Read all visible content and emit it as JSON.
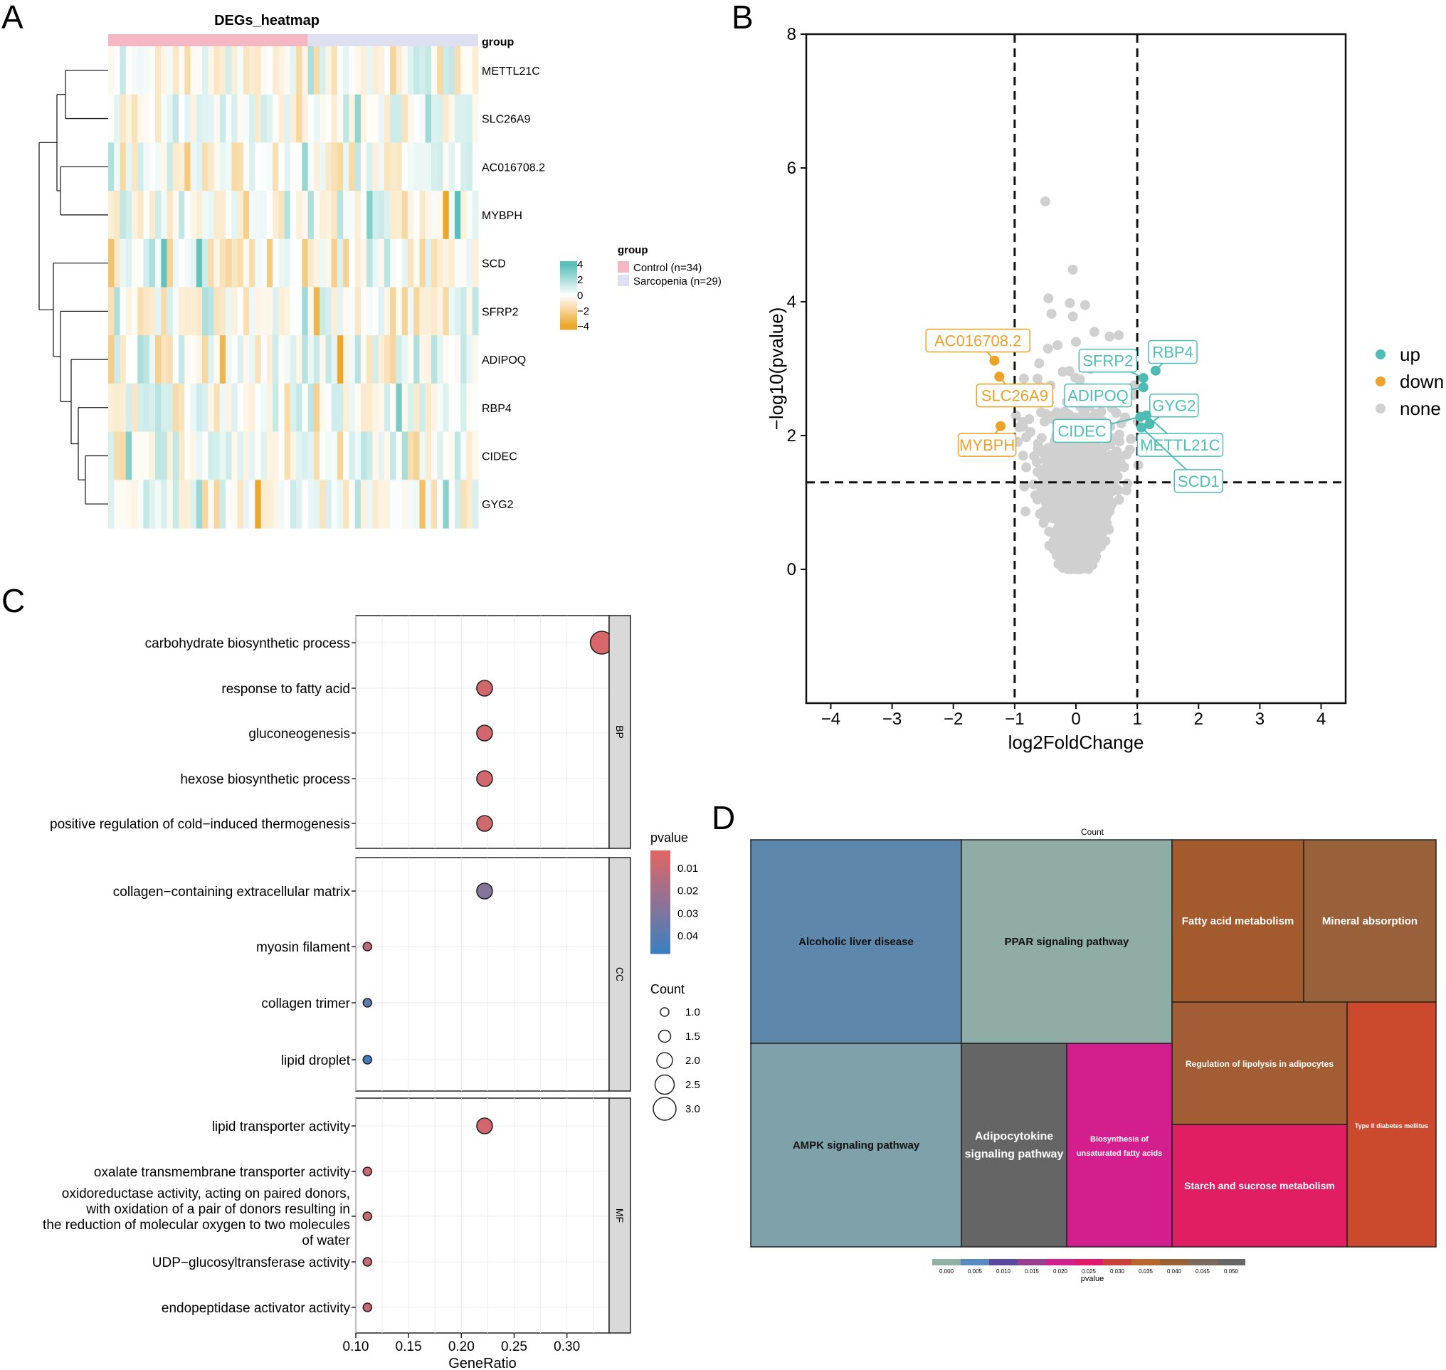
{
  "panel_letters": {
    "a": "A",
    "b": "B",
    "c": "C",
    "d": "D"
  },
  "colors": {
    "up": "#4dbdb4",
    "down": "#eca127",
    "none": "#d0d0d0",
    "control": "#f6b7c5",
    "sarcopenia": "#dedff0",
    "heat_high": "#5cc0b9",
    "heat_mid": "#ffffff",
    "heat_low": "#eca72b",
    "pvalue_low": "#e06666",
    "pvalue_high": "#3d7fc1"
  },
  "chart_data": [
    {
      "id": "A",
      "type": "heatmap",
      "title": "DEGs_heatmap",
      "annotation_label": "group",
      "genes": [
        "METTL21C",
        "SLC26A9",
        "AC016708.2",
        "MYBPH",
        "SCD",
        "SFRP2",
        "ADIPOQ",
        "RBP4",
        "CIDEC",
        "GYG2"
      ],
      "groups": [
        {
          "name": "Control (n=34)",
          "n": 34
        },
        {
          "name": "Sarcopenia (n=29)",
          "n": 29
        }
      ],
      "legend_title": "group",
      "colorbar_ticks": [
        4,
        2,
        0,
        -2,
        -4
      ],
      "colorbar_labels": [
        "4",
        "2",
        "0",
        "−2",
        "−4"
      ],
      "value_range": [
        -4,
        4
      ]
    },
    {
      "id": "B",
      "type": "scatter",
      "xlabel": "log2FoldChange",
      "ylabel": "−log10(pvalue)",
      "xlim": [
        -4.4,
        4.4
      ],
      "ylim": [
        -2.0,
        8.0
      ],
      "xticks": [
        -4,
        -3,
        -2,
        -1,
        0,
        1,
        2,
        3,
        4
      ],
      "xtick_labels": [
        "−4",
        "−3",
        "−2",
        "−1",
        "0",
        "1",
        "2",
        "3",
        "4"
      ],
      "yticks": [
        0,
        2,
        4,
        6,
        8
      ],
      "ytick_labels": [
        "0",
        "2",
        "4",
        "6",
        "8"
      ],
      "vlines": [
        -1,
        1
      ],
      "hline": 1.3,
      "legend": [
        "up",
        "down",
        "none"
      ],
      "labeled_points": [
        {
          "gene": "AC016708.2",
          "x": -1.33,
          "y": 3.12,
          "group": "down",
          "lx": -1.6,
          "ly": 3.42
        },
        {
          "gene": "SLC26A9",
          "x": -1.25,
          "y": 2.88,
          "group": "down",
          "lx": -1.0,
          "ly": 2.6
        },
        {
          "gene": "MYBPH",
          "x": -1.23,
          "y": 2.14,
          "group": "down",
          "lx": -1.45,
          "ly": 1.86
        },
        {
          "gene": "SFRP2",
          "x": 1.1,
          "y": 2.86,
          "group": "up",
          "lx": 0.52,
          "ly": 3.12
        },
        {
          "gene": "RBP4",
          "x": 1.3,
          "y": 2.97,
          "group": "up",
          "lx": 1.58,
          "ly": 3.25
        },
        {
          "gene": "ADIPOQ",
          "x": 1.1,
          "y": 2.72,
          "group": "up",
          "lx": 0.36,
          "ly": 2.6
        },
        {
          "gene": "GYG2",
          "x": 1.2,
          "y": 2.17,
          "group": "up",
          "lx": 1.6,
          "ly": 2.45
        },
        {
          "gene": "CIDEC",
          "x": 1.05,
          "y": 2.28,
          "group": "up",
          "lx": 0.1,
          "ly": 2.07
        },
        {
          "gene": "METTL21C",
          "x": 1.15,
          "y": 2.3,
          "group": "up",
          "lx": 1.7,
          "ly": 1.86
        },
        {
          "gene": "SCD1",
          "x": 1.07,
          "y": 2.12,
          "group": "up",
          "lx": 2.0,
          "ly": 1.32
        }
      ],
      "outlier_points": [
        {
          "x": -0.5,
          "y": 5.5
        },
        {
          "x": -0.05,
          "y": 4.48
        },
        {
          "x": -0.45,
          "y": 4.05
        },
        {
          "x": -0.1,
          "y": 3.98
        },
        {
          "x": -0.4,
          "y": 3.82
        },
        {
          "x": -0.05,
          "y": 3.78
        },
        {
          "x": 0.15,
          "y": 3.95
        },
        {
          "x": 0.3,
          "y": 3.55
        },
        {
          "x": 0.55,
          "y": 3.48
        },
        {
          "x": 0.7,
          "y": 3.5
        },
        {
          "x": 0.0,
          "y": 3.4
        },
        {
          "x": -0.3,
          "y": 3.35
        },
        {
          "x": -0.85,
          "y": 2.85
        },
        {
          "x": -0.7,
          "y": 2.6
        }
      ]
    },
    {
      "id": "C",
      "type": "scatter",
      "xlabel": "GeneRatio",
      "xlim": [
        0.1,
        0.34
      ],
      "xticks": [
        0.1,
        0.15,
        0.2,
        0.25,
        0.3
      ],
      "xtick_labels": [
        "0.10",
        "0.15",
        "0.20",
        "0.25",
        "0.30"
      ],
      "pvalue_title": "pvalue",
      "pvalue_range": [
        0.002,
        0.048
      ],
      "pvalue_ticks": [
        0.01,
        0.02,
        0.03,
        0.04
      ],
      "pvalue_tick_labels": [
        "0.01",
        "0.02",
        "0.03",
        "0.04"
      ],
      "count_title": "Count",
      "count_legend": [
        1.0,
        1.5,
        2.0,
        2.5,
        3.0
      ],
      "count_legend_labels": [
        "1.0",
        "1.5",
        "2.0",
        "2.5",
        "3.0"
      ],
      "facets": [
        {
          "name": "BP",
          "terms": [
            {
              "lines": [
                "carbohydrate biosynthetic process"
              ],
              "ratio": 0.333,
              "count": 3,
              "pvalue": 0.004
            },
            {
              "lines": [
                "response to fatty acid"
              ],
              "ratio": 0.222,
              "count": 2,
              "pvalue": 0.006
            },
            {
              "lines": [
                "gluconeogenesis"
              ],
              "ratio": 0.222,
              "count": 2,
              "pvalue": 0.006
            },
            {
              "lines": [
                "hexose biosynthetic process"
              ],
              "ratio": 0.222,
              "count": 2,
              "pvalue": 0.006
            },
            {
              "lines": [
                "positive regulation of cold−induced thermogenesis"
              ],
              "ratio": 0.222,
              "count": 2,
              "pvalue": 0.007
            }
          ]
        },
        {
          "name": "CC",
          "terms": [
            {
              "lines": [
                "collagen−containing extracellular matrix"
              ],
              "ratio": 0.222,
              "count": 2,
              "pvalue": 0.028
            },
            {
              "lines": [
                "myosin filament"
              ],
              "ratio": 0.111,
              "count": 1,
              "pvalue": 0.012
            },
            {
              "lines": [
                "collagen trimer"
              ],
              "ratio": 0.111,
              "count": 1,
              "pvalue": 0.038
            },
            {
              "lines": [
                "lipid droplet"
              ],
              "ratio": 0.111,
              "count": 1,
              "pvalue": 0.047
            }
          ]
        },
        {
          "name": "MF",
          "terms": [
            {
              "lines": [
                "lipid transporter activity"
              ],
              "ratio": 0.222,
              "count": 2,
              "pvalue": 0.006
            },
            {
              "lines": [
                "oxalate transmembrane transporter activity"
              ],
              "ratio": 0.111,
              "count": 1,
              "pvalue": 0.008
            },
            {
              "lines": [
                "oxidoreductase activity, acting on paired donors,",
                "with oxidation of a pair of donors resulting in",
                "the reduction of molecular oxygen to two molecules",
                "of water"
              ],
              "ratio": 0.111,
              "count": 1,
              "pvalue": 0.008
            },
            {
              "lines": [
                "UDP−glucosyltransferase activity"
              ],
              "ratio": 0.111,
              "count": 1,
              "pvalue": 0.009
            },
            {
              "lines": [
                "endopeptidase activator activity"
              ],
              "ratio": 0.111,
              "count": 1,
              "pvalue": 0.009
            }
          ]
        }
      ]
    },
    {
      "id": "D",
      "type": "treemap",
      "title": "Count",
      "colorbar_label": "pvalue",
      "colorbar_ticks": [
        "0.000",
        "0.005",
        "0.010",
        "0.015",
        "0.020",
        "0.025",
        "0.030",
        "0.035",
        "0.040",
        "0.045",
        "0.050"
      ],
      "colorbar_colors": [
        "#8fb0a3",
        "#5b8ac0",
        "#5b4a9e",
        "#983f8f",
        "#d0218f",
        "#e0196a",
        "#c9413a",
        "#b8682c",
        "#9a6036",
        "#7b6a5c",
        "#666666"
      ],
      "tiles": [
        {
          "name": "Alcoholic liver disease",
          "color": "#5d87ab"
        },
        {
          "name": "PPAR signaling pathway",
          "color": "#8fada6"
        },
        {
          "name": "Fatty acid metabolism",
          "color": "#a35b2e"
        },
        {
          "name": "Mineral absorption",
          "color": "#99613a"
        },
        {
          "name": "Regulation of lipolysis in adipocytes",
          "color": "#a25d34"
        },
        {
          "name": "Type II diabetes mellitus",
          "color": "#cb4a2d"
        },
        {
          "name": "AMPK signaling pathway",
          "color": "#7fa1a9"
        },
        {
          "name": "Adipocytokine signaling pathway",
          "color": "#656565"
        },
        {
          "name": "Biosynthesis of unsaturated fatty acids",
          "color": "#d21f8d"
        },
        {
          "name": "Starch and sucrose metabolism",
          "color": "#e11d63"
        }
      ]
    }
  ]
}
